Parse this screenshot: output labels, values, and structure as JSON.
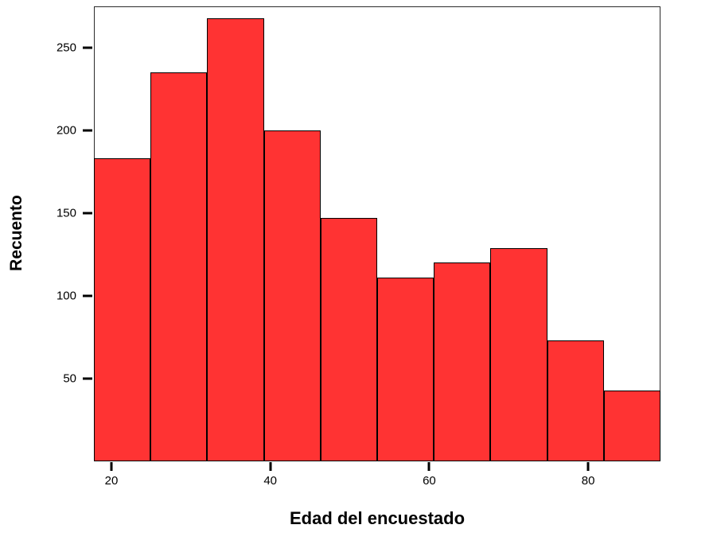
{
  "chart_data": {
    "type": "histogram",
    "title": "",
    "xlabel": "Edad del encuestado",
    "ylabel": "Recuento",
    "values": [
      183,
      235,
      268,
      200,
      147,
      111,
      120,
      129,
      73,
      43
    ],
    "bin_count": 10,
    "x_range": [
      17.8,
      89.1
    ],
    "x_ticks": [
      20,
      40,
      60,
      80
    ],
    "y_ticks": [
      50,
      100,
      150,
      200,
      250
    ],
    "ylim": [
      0,
      275
    ],
    "grid": false,
    "legend": "none",
    "bar_color": "#ff3333",
    "bar_border_color": "#000000",
    "frame_color": "#2a2a2a",
    "text_color": "#000000",
    "background_color": "#ffffff"
  }
}
